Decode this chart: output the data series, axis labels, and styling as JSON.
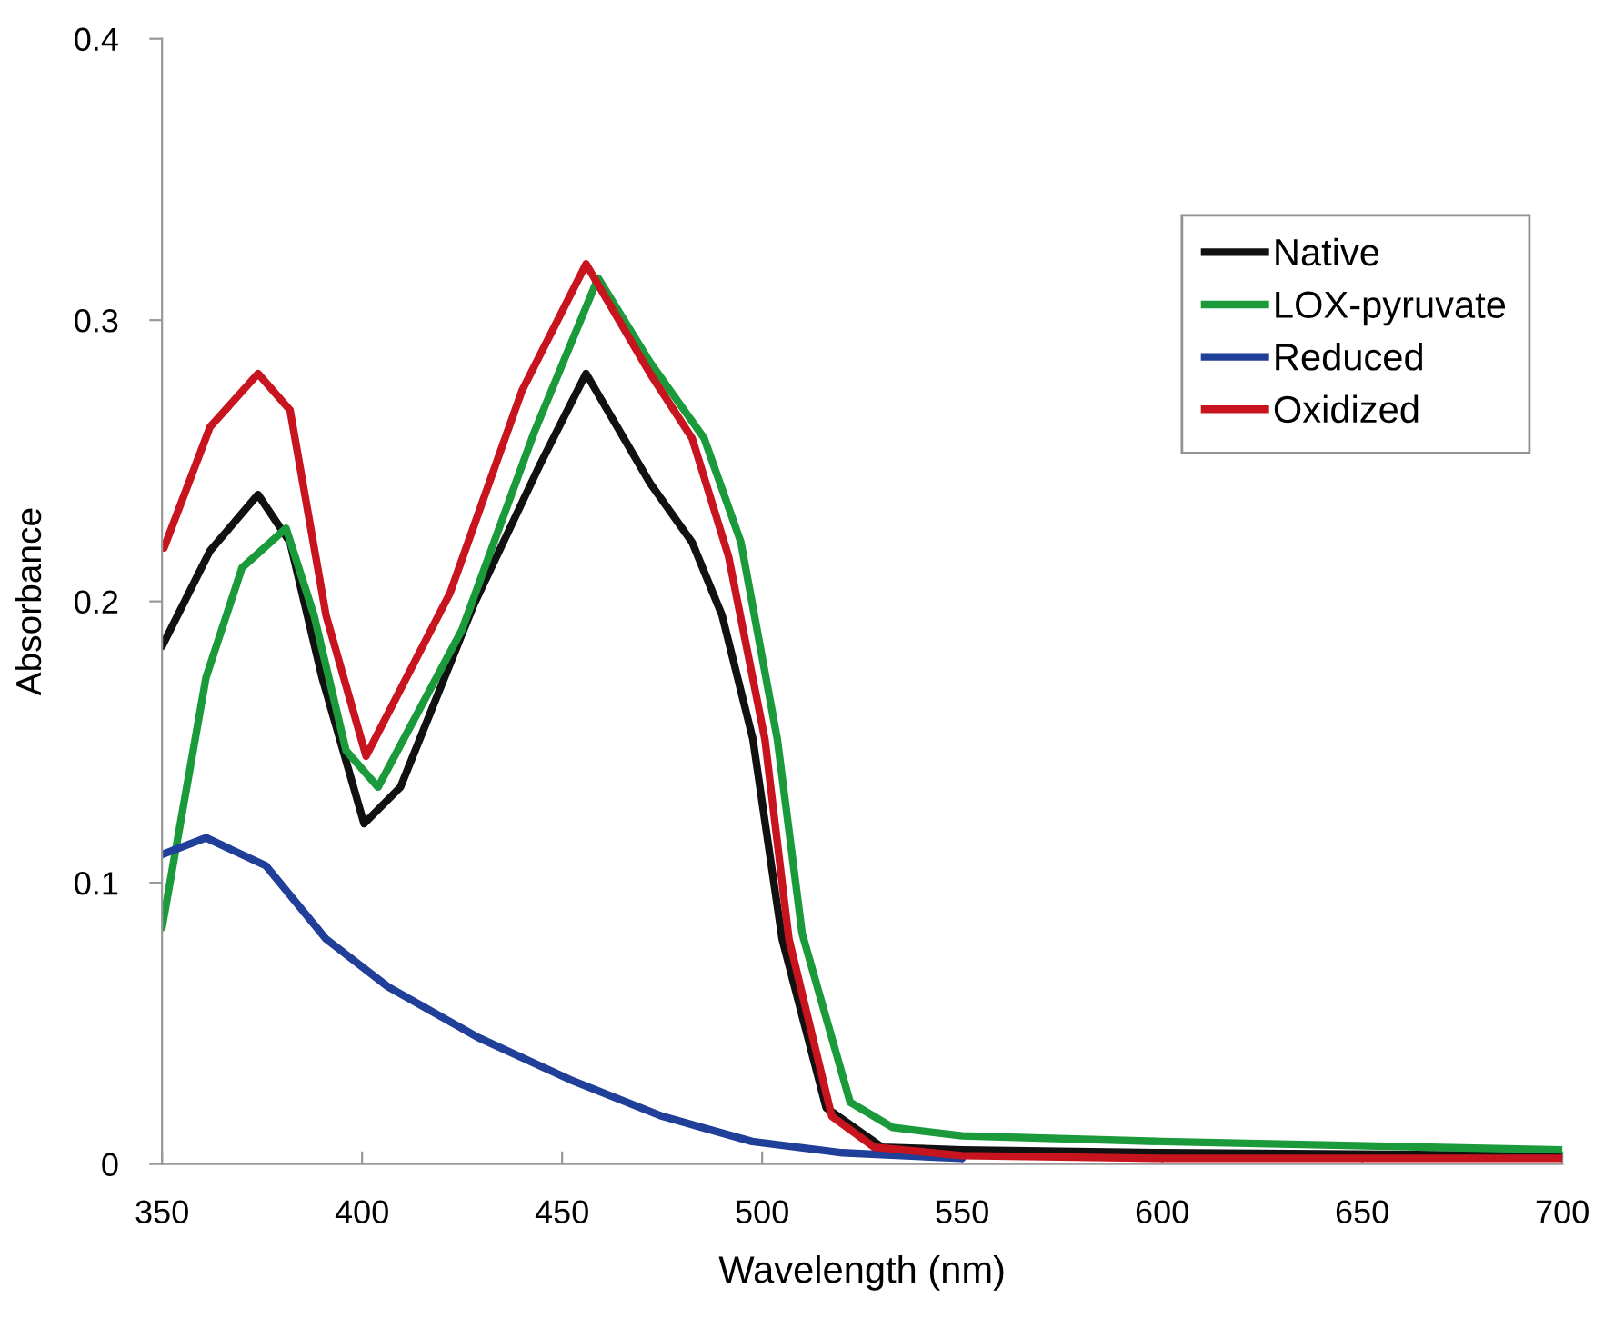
{
  "chart_data": {
    "type": "line",
    "xlabel": "Wavelength (nm)",
    "ylabel": "Absorbance",
    "xlim": [
      350,
      700
    ],
    "xticks": [
      350,
      400,
      450,
      500,
      550,
      600,
      650,
      700
    ],
    "ylim": [
      0,
      0.4
    ],
    "yticks": [
      0,
      0.1,
      0.2,
      0.3,
      0.4
    ],
    "grid": false,
    "legend": "top right",
    "marker": "none",
    "line_style": "solid",
    "series": [
      {
        "name": "Native",
        "color": "#111111",
        "x": [
          350,
          362,
          374,
          382,
          390,
          400.5,
          409.6,
          428,
          444.6,
          456,
          472,
          482.5,
          490,
          497.7,
          505,
          516,
          530,
          550,
          600,
          700
        ],
        "values": [
          0.184,
          0.218,
          0.238,
          0.221,
          0.173,
          0.121,
          0.134,
          0.199,
          0.249,
          0.281,
          0.242,
          0.221,
          0.195,
          0.151,
          0.08,
          0.02,
          0.006,
          0.005,
          0.004,
          0.003
        ]
      },
      {
        "name": "LOX-pyruvate",
        "color": "#1a9a3a",
        "x": [
          350,
          361,
          370,
          381,
          388,
          396,
          404,
          425,
          443,
          459,
          472,
          485.5,
          494.7,
          503.8,
          510,
          522,
          532.6,
          550,
          600,
          700
        ],
        "values": [
          0.084,
          0.173,
          0.212,
          0.226,
          0.195,
          0.147,
          0.134,
          0.19,
          0.26,
          0.315,
          0.285,
          0.258,
          0.221,
          0.151,
          0.082,
          0.022,
          0.013,
          0.01,
          0.008,
          0.005
        ]
      },
      {
        "name": "Reduced",
        "color": "#1f3f99",
        "x": [
          350,
          361,
          376,
          391,
          406.5,
          429,
          452,
          475,
          497.5,
          520,
          550
        ],
        "values": [
          0.11,
          0.116,
          0.106,
          0.08,
          0.063,
          0.045,
          0.03,
          0.017,
          0.008,
          0.004,
          0.002
        ]
      },
      {
        "name": "Oxidized",
        "color": "#c8141e",
        "x": [
          350.5,
          362,
          374,
          382,
          391,
          401,
          422,
          440,
          456,
          472,
          482.5,
          491.6,
          500.7,
          506.7,
          517.4,
          528,
          550,
          600,
          700
        ],
        "values": [
          0.219,
          0.262,
          0.281,
          0.268,
          0.195,
          0.145,
          0.203,
          0.275,
          0.32,
          0.281,
          0.258,
          0.216,
          0.151,
          0.08,
          0.017,
          0.006,
          0.003,
          0.002,
          0.002
        ]
      }
    ]
  }
}
